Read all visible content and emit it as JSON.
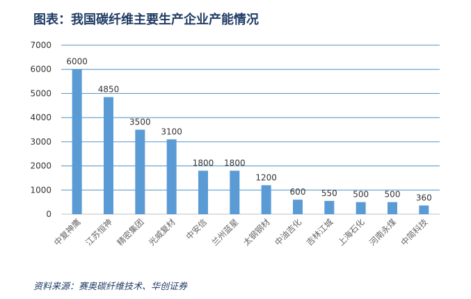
{
  "chart_data": {
    "type": "bar",
    "title": "图表：我国碳纤维主要生产企业产能情况",
    "source": "资料来源：赛奥碳纤维技术、华创证券",
    "categories": [
      "中复神鹰",
      "江苏恒神",
      "精密集团",
      "光威复材",
      "中安信",
      "兰州蓝星",
      "太钢钢材",
      "中油吉化",
      "吉林江城",
      "上海石化",
      "河南永煤",
      "中简科技"
    ],
    "values": [
      6000,
      4850,
      3500,
      3100,
      1800,
      1800,
      1200,
      600,
      550,
      500,
      500,
      360
    ],
    "data_labels": [
      "6000",
      "4850",
      "3500",
      "3100",
      "1800",
      "1800",
      "1200",
      "600",
      "550",
      "500",
      "500",
      "360"
    ],
    "y_ticks": [
      "0",
      "1000",
      "2000",
      "3000",
      "4000",
      "5000",
      "6000",
      "7000"
    ],
    "ylim": [
      0,
      7000
    ],
    "grid": true,
    "bar_color": "#5b9bd5",
    "grid_color": "#4a90c8",
    "legend": false
  }
}
